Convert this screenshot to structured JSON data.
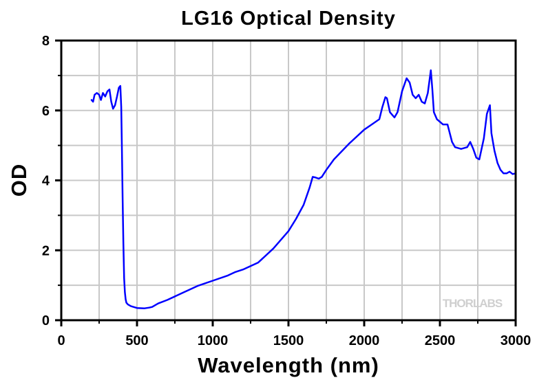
{
  "chart_data": {
    "type": "line",
    "title": "LG16 Optical Density",
    "xlabel": "Wavelength (nm)",
    "ylabel": "OD",
    "xlim": [
      0,
      3000
    ],
    "ylim": [
      0,
      8
    ],
    "xticks": [
      0,
      500,
      1000,
      1500,
      2000,
      2500,
      3000
    ],
    "xtick_labels": [
      "0",
      "500",
      "1000",
      "1500",
      "2000",
      "2500",
      "3000"
    ],
    "yticks": [
      0,
      2,
      4,
      6,
      8
    ],
    "ytick_labels": [
      "0",
      "2",
      "4",
      "6",
      "8"
    ],
    "grid": true,
    "legend": "none",
    "watermark": "THORLABS",
    "series": [
      {
        "name": "OD",
        "color": "#0000ff",
        "x": [
          200,
          210,
          220,
          235,
          250,
          262,
          275,
          290,
          305,
          318,
          330,
          342,
          355,
          368,
          380,
          390,
          396,
          400,
          405,
          410,
          415,
          420,
          425,
          430,
          440,
          460,
          500,
          550,
          580,
          600,
          640,
          700,
          800,
          900,
          1000,
          1100,
          1150,
          1200,
          1300,
          1400,
          1500,
          1550,
          1600,
          1640,
          1660,
          1680,
          1700,
          1720,
          1750,
          1800,
          1900,
          2000,
          2050,
          2100,
          2120,
          2140,
          2150,
          2170,
          2200,
          2220,
          2250,
          2280,
          2300,
          2320,
          2340,
          2360,
          2380,
          2400,
          2420,
          2440,
          2450,
          2460,
          2480,
          2520,
          2550,
          2580,
          2600,
          2640,
          2680,
          2700,
          2720,
          2740,
          2760,
          2790,
          2810,
          2830,
          2840,
          2860,
          2880,
          2900,
          2920,
          2940,
          2960,
          2980,
          3000
        ],
        "y": [
          6.3,
          6.25,
          6.45,
          6.5,
          6.45,
          6.3,
          6.5,
          6.4,
          6.55,
          6.6,
          6.25,
          6.05,
          6.15,
          6.4,
          6.65,
          6.7,
          6.1,
          5.0,
          3.5,
          2.2,
          1.2,
          0.8,
          0.6,
          0.5,
          0.45,
          0.4,
          0.35,
          0.34,
          0.36,
          0.38,
          0.48,
          0.58,
          0.78,
          0.98,
          1.13,
          1.28,
          1.38,
          1.45,
          1.65,
          2.05,
          2.55,
          2.9,
          3.3,
          3.8,
          4.1,
          4.08,
          4.05,
          4.1,
          4.3,
          4.6,
          5.05,
          5.45,
          5.6,
          5.75,
          6.1,
          6.38,
          6.35,
          5.95,
          5.8,
          5.95,
          6.55,
          6.92,
          6.8,
          6.45,
          6.35,
          6.45,
          6.25,
          6.2,
          6.5,
          7.15,
          6.6,
          5.95,
          5.75,
          5.6,
          5.6,
          5.1,
          4.95,
          4.9,
          4.95,
          5.1,
          4.9,
          4.65,
          4.6,
          5.2,
          5.9,
          6.15,
          5.35,
          4.85,
          4.5,
          4.3,
          4.2,
          4.2,
          4.25,
          4.18,
          4.2
        ]
      }
    ]
  }
}
